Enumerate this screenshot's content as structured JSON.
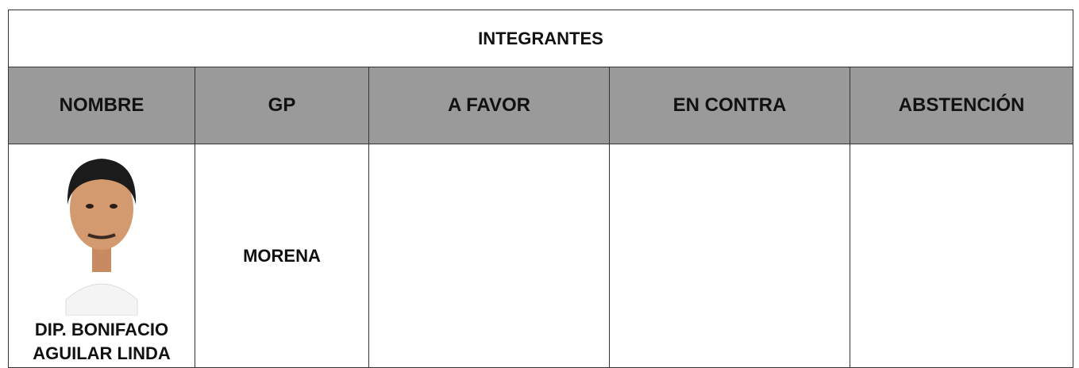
{
  "table": {
    "title": "INTEGRANTES",
    "headers": [
      "NOMBRE",
      "GP",
      "A FAVOR",
      "EN CONTRA",
      "ABSTENCIÓN"
    ],
    "rows": [
      [
        "DIP. BONIFACIO AGUILAR LINDA",
        "MORENA",
        "",
        "",
        ""
      ]
    ]
  }
}
